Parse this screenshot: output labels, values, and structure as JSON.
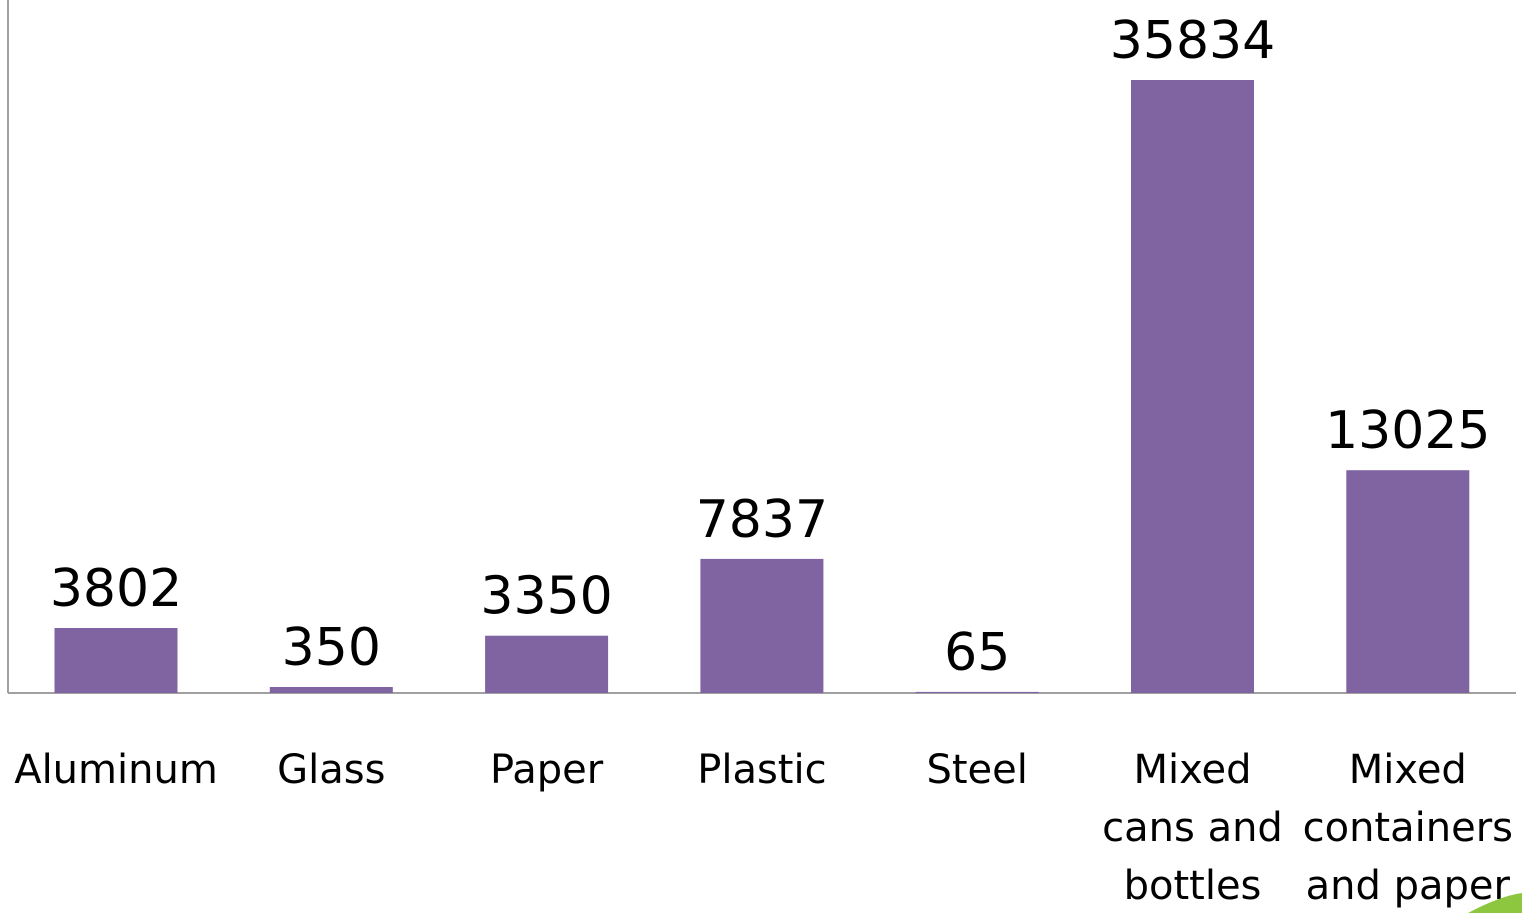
{
  "chart_data": {
    "type": "bar",
    "categories": [
      [
        "Aluminum"
      ],
      [
        "Glass"
      ],
      [
        "Paper"
      ],
      [
        "Plastic"
      ],
      [
        "Steel"
      ],
      [
        "Mixed",
        "cans and",
        "bottles"
      ],
      [
        "Mixed",
        "containers",
        "and paper"
      ]
    ],
    "values": [
      3802,
      350,
      3350,
      7837,
      65,
      35834,
      13025
    ],
    "data_labels": [
      "3802",
      "350",
      "3350",
      "7837",
      "65",
      "35834",
      "13025"
    ],
    "ylim": [
      0,
      36000
    ],
    "grid": false,
    "legend": "none",
    "bar_color": "#8064A2",
    "axis_color": "#A0A0A0",
    "corner_accent_color": "#8DC63F"
  }
}
